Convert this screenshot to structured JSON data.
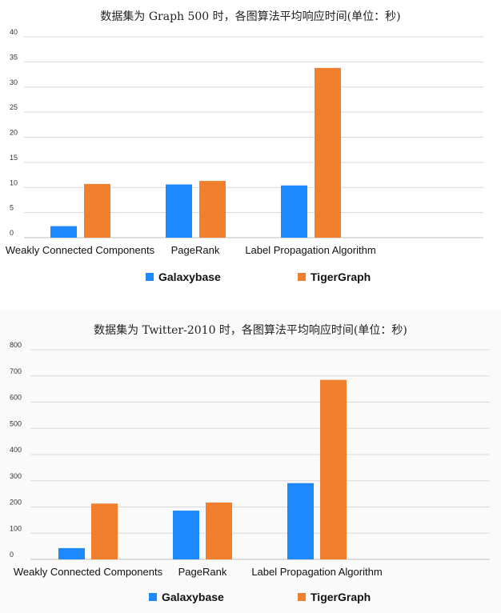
{
  "colors": {
    "galaxybase": "#1e88ff",
    "tigergraph": "#f07f2e",
    "grid": "#d9d9d9",
    "axis": "#bdbdbd"
  },
  "chart_data": [
    {
      "type": "bar",
      "title": "数据集为 Graph 500 时，各图算法平均响应时间(单位：秒)",
      "categories": [
        "Weakly Connected Components",
        "PageRank",
        "Label Propagation Algorithm"
      ],
      "series": [
        {
          "name": "Galaxybase",
          "values": [
            2.3,
            10.6,
            10.4
          ]
        },
        {
          "name": "TigerGraph",
          "values": [
            10.7,
            11.3,
            33.8
          ]
        }
      ],
      "ylim": [
        0,
        40
      ],
      "yticks": [
        0,
        5,
        10,
        15,
        20,
        25,
        30,
        35,
        40
      ],
      "grid": true,
      "legend": "bottom"
    },
    {
      "type": "bar",
      "title": "数据集为 Twitter-2010 时，各图算法平均响应时间(单位：秒)",
      "categories": [
        "Weakly Connected Components",
        "PageRank",
        "Label Propagation Algorithm"
      ],
      "series": [
        {
          "name": "Galaxybase",
          "values": [
            43,
            186,
            291
          ]
        },
        {
          "name": "TigerGraph",
          "values": [
            213,
            217,
            685
          ]
        }
      ],
      "ylim": [
        0,
        800
      ],
      "yticks": [
        0,
        100,
        200,
        300,
        400,
        500,
        600,
        700,
        800
      ],
      "grid": true,
      "legend": "bottom"
    }
  ]
}
